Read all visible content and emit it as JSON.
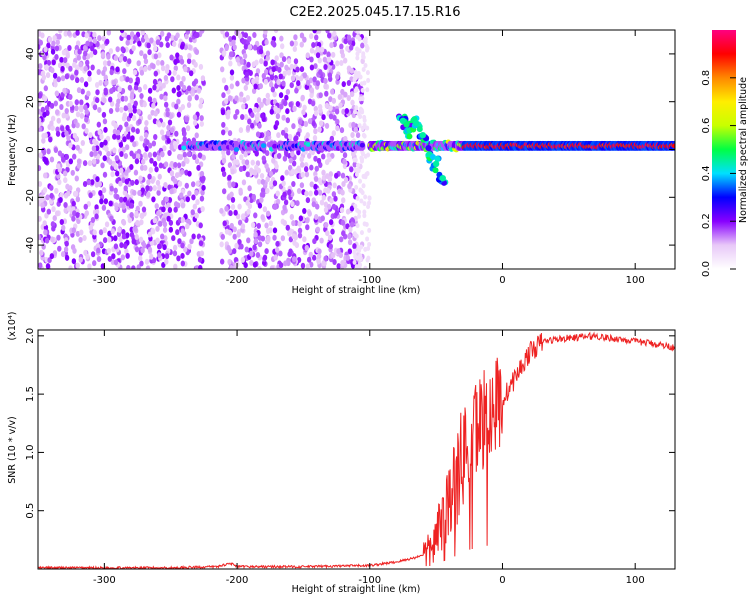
{
  "chart_data": [
    {
      "type": "heatmap",
      "title": "C2E2.2025.045.17.15.R16",
      "xlabel": "Height of straight line (km)",
      "ylabel": "Frequency (Hz)",
      "xlim": [
        -350,
        130
      ],
      "ylim": [
        -50,
        50
      ],
      "x_ticks": [
        -300,
        -200,
        -100,
        0,
        100
      ],
      "y_ticks": [
        -40,
        -20,
        0,
        20,
        40
      ],
      "colorbar": {
        "label": "Normalized spectral amplitude",
        "range": [
          0.0,
          1.0
        ],
        "ticks": [
          0.0,
          0.2,
          0.4,
          0.6,
          0.8
        ],
        "colors": [
          "#ffffff",
          "#e8c8f8",
          "#8800ff",
          "#0000ff",
          "#00e0ff",
          "#00ff44",
          "#c8ff00",
          "#ffee00",
          "#ff8800",
          "#ff0000",
          "#ff0080"
        ]
      },
      "description_points": {
        "noise_region_x": [
          -350,
          -105
        ],
        "signal_line_freq": 1.5,
        "signal_start_x": -240,
        "strong_signal_x": [
          -30,
          130
        ],
        "branch_points": [
          {
            "x": -75,
            "y": 12
          },
          {
            "x": -70,
            "y": 8
          },
          {
            "x": -65,
            "y": 11
          },
          {
            "x": -60,
            "y": 6
          },
          {
            "x": -55,
            "y": -2
          },
          {
            "x": -50,
            "y": -6
          },
          {
            "x": -45,
            "y": -12
          }
        ]
      }
    },
    {
      "type": "line",
      "xlabel": "Height of straight line (km)",
      "ylabel": "SNR (10 * v/v)",
      "y_multiplier": "(x10⁴)",
      "xlim": [
        -350,
        130
      ],
      "ylim": [
        0,
        2.05
      ],
      "x_ticks": [
        -300,
        -200,
        -100,
        0,
        100
      ],
      "y_ticks": [
        0.5,
        1.0,
        1.5,
        2.0
      ],
      "series_color": "#ee2222",
      "x": [
        -350,
        -300,
        -250,
        -215,
        -205,
        -200,
        -150,
        -100,
        -80,
        -65,
        -55,
        -50,
        -45,
        -40,
        -35,
        -30,
        -25,
        -20,
        -15,
        -10,
        -5,
        0,
        5,
        10,
        15,
        20,
        25,
        30,
        40,
        50,
        60,
        70,
        80,
        90,
        100,
        110,
        120,
        130
      ],
      "values": [
        0.01,
        0.01,
        0.01,
        0.02,
        0.05,
        0.02,
        0.02,
        0.03,
        0.06,
        0.1,
        0.15,
        0.25,
        0.45,
        0.6,
        0.75,
        0.95,
        1.1,
        1.2,
        1.3,
        1.35,
        1.4,
        1.45,
        1.55,
        1.65,
        1.75,
        1.85,
        1.9,
        1.95,
        1.97,
        1.98,
        1.99,
        2.0,
        1.98,
        1.97,
        1.95,
        1.94,
        1.92,
        1.9
      ]
    }
  ]
}
